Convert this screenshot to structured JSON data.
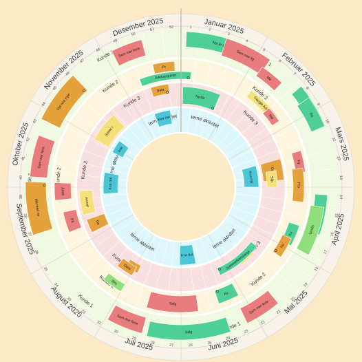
{
  "colors": {
    "background": "#fdebc8",
    "month_ring": "#f7f2ea",
    "kunde1_ring": "#eef9df",
    "kunde2_ring": "#fcf5dc",
    "kunde3_ring": "#f9dede",
    "intern_ring": "#d9f6fb",
    "center": "#fdebc8",
    "gap_ring": "#ffffff"
  },
  "months": [
    "Januar 2025",
    "Februar 2025",
    "Mars 2025",
    "April 2025",
    "Mai 2025",
    "Juni 2025",
    "Juli 2025",
    "August 2025",
    "September 2025",
    "Oktober 2025",
    "November 2025",
    "Desember 2025"
  ],
  "weeks": [
    "1",
    "2",
    "3",
    "4",
    "5",
    "6",
    "7",
    "8",
    "9",
    "10",
    "11",
    "12",
    "13",
    "14",
    "15",
    "16",
    "17",
    "18",
    "19",
    "20",
    "21",
    "22",
    "23",
    "24",
    "25",
    "26",
    "27",
    "28",
    "29",
    "30",
    "31",
    "32",
    "33",
    "34",
    "35",
    "36",
    "37",
    "38",
    "39",
    "40",
    "41",
    "42",
    "43",
    "44",
    "45",
    "46",
    "47",
    "48",
    "49",
    "50",
    "51",
    "52"
  ],
  "rings": [
    {
      "id": "kunde1",
      "label": "Kunde 1"
    },
    {
      "id": "kunde2",
      "label": "Kunde 2"
    },
    {
      "id": "kunde3",
      "label": "Kunde 3"
    },
    {
      "id": "intern",
      "label": "Interne aktiviteter"
    }
  ],
  "activities": [
    {
      "ring": "kunde1",
      "label": "Nyt år ak sa",
      "color": "#4fcf98",
      "icon": "dot"
    },
    {
      "ring": "kunde1",
      "label": "Sam mer lig",
      "color": "#e97c7c",
      "icon": "none"
    },
    {
      "ring": "kunde1",
      "label": "Mø",
      "color": "#e97c7c",
      "icon": "none"
    },
    {
      "ring": "kunde1",
      "label": "Opsal",
      "color": "#4fcf98",
      "icon": "dot"
    },
    {
      "ring": "kunde1",
      "label": "Sa",
      "color": "#4fcf98",
      "icon": "none"
    },
    {
      "ring": "kunde1",
      "label": "GDPR",
      "color": "#4fcf98",
      "icon": "dot"
    },
    {
      "ring": "kunde1",
      "label": "Umills",
      "color": "#8fe07a",
      "icon": "none"
    },
    {
      "ring": "kunde1",
      "label": "Sam mer ferie",
      "color": "#e97c7c",
      "icon": "none"
    },
    {
      "ring": "kunde1",
      "label": "Salg",
      "color": "#4fcf98",
      "icon": "none"
    },
    {
      "ring": "kunde1",
      "label": "Sam mer ferie",
      "color": "#e97c7c",
      "icon": "none"
    },
    {
      "ring": "kunde1",
      "label": "Ma rked sa",
      "color": "#e5a13c",
      "icon": "dot"
    },
    {
      "ring": "kunde1",
      "label": "Sam mer ferie",
      "color": "#e97c7c",
      "icon": "none"
    },
    {
      "ring": "kunde1",
      "label": "Gje nno mpe",
      "color": "#e5a13c",
      "icon": "dot"
    },
    {
      "ring": "kunde1",
      "label": "Sam mer ferie",
      "color": "#e97c7c",
      "icon": "none"
    },
    {
      "ring": "kunde2",
      "label": "Google Ads og",
      "color": "#f5e07a",
      "icon": "none"
    },
    {
      "ring": "kunde2",
      "label": "Mø",
      "color": "#e97c7c",
      "icon": "none"
    },
    {
      "ring": "kunde2",
      "label": "Ny",
      "color": "#e97c7c",
      "icon": "none"
    },
    {
      "ring": "kunde2",
      "label": "Pro",
      "color": "#e5a13c",
      "icon": "none"
    },
    {
      "ring": "kunde2",
      "label": "Ku",
      "color": "#4fcf98",
      "icon": "dot"
    },
    {
      "ring": "kunde2",
      "label": "Ny",
      "color": "#e5a13c",
      "icon": "dot"
    },
    {
      "ring": "kunde2",
      "label": "Ku",
      "color": "#4fcf98",
      "icon": "dot"
    },
    {
      "ring": "kunde2",
      "label": "Salg",
      "color": "#e97c7c",
      "icon": "none"
    },
    {
      "ring": "kunde2",
      "label": "Bes",
      "color": "#8fe07a",
      "icon": "none"
    },
    {
      "ring": "kunde2",
      "label": "På",
      "color": "#e97c7c",
      "icon": "none"
    },
    {
      "ring": "kunde2",
      "label": "Juleb",
      "color": "#e97c7c",
      "icon": "none"
    },
    {
      "ring": "kunde2",
      "label": "Pr",
      "color": "#e5a13c",
      "icon": "none"
    },
    {
      "ring": "kunde2",
      "label": "Julekampanje",
      "color": "#4fcf98",
      "icon": "dot"
    },
    {
      "ring": "kunde3",
      "label": "Nyttår",
      "color": "#4fcf98",
      "icon": "dot"
    },
    {
      "ring": "kunde3",
      "label": "Data",
      "color": "#e5a13c",
      "icon": "none"
    },
    {
      "ring": "kunde3",
      "label": "Slip",
      "color": "#f5e07a",
      "icon": "none"
    },
    {
      "ring": "kunde3",
      "label": "Ad",
      "color": "#f5e07a",
      "icon": "dot"
    },
    {
      "ring": "kunde3",
      "label": "Sommerkampanje",
      "color": "#4fcf98",
      "icon": "dot"
    },
    {
      "ring": "kunde3",
      "label": "Inte",
      "color": "#e5a13c",
      "icon": "none"
    },
    {
      "ring": "kunde3",
      "label": "Data",
      "color": "#e5a13c",
      "icon": "none"
    },
    {
      "ring": "kunde3",
      "label": "Da",
      "color": "#e5a13c",
      "icon": "none"
    },
    {
      "ring": "kunde3",
      "label": "Annon",
      "color": "#f5e07a",
      "icon": "none"
    },
    {
      "ring": "kunde3",
      "label": "SoMe r",
      "color": "#f5e07a",
      "icon": "none"
    },
    {
      "ring": "kunde3",
      "label": "Data",
      "color": "#e5a13c",
      "icon": "dot"
    },
    {
      "ring": "intern",
      "label": "Kva rtal",
      "color": "#4cc6d6",
      "icon": "none"
    },
    {
      "ring": "intern",
      "label": "Kva rtal",
      "color": "#4cc6d6",
      "icon": "none"
    },
    {
      "ring": "intern",
      "label": "Kva rtal",
      "color": "#4cc6d6",
      "icon": "none"
    },
    {
      "ring": "intern",
      "label": "Kva rtal",
      "color": "#4cc6d6",
      "icon": "none"
    },
    {
      "ring": "intern",
      "label": "Inte",
      "color": "#4cc6d6",
      "icon": "none"
    }
  ]
}
